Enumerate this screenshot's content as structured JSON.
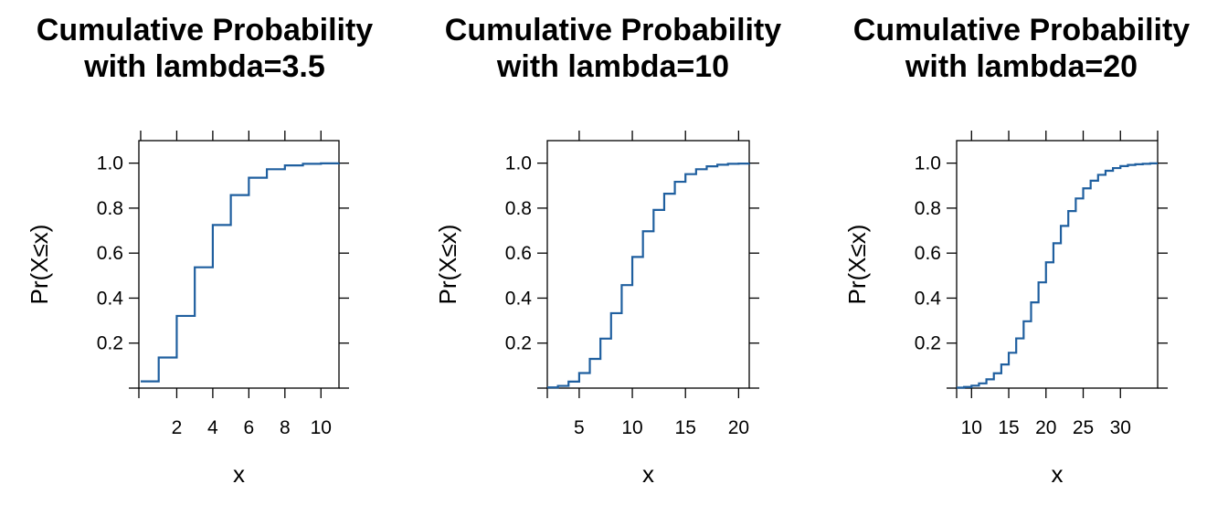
{
  "chart_data": [
    {
      "type": "line",
      "step": true,
      "title": [
        "Cumulative Probability",
        "with lambda=3.5"
      ],
      "xlabel": "x",
      "ylabel": "Pr(X≤x)",
      "xlim": [
        -0.1,
        11
      ],
      "ylim": [
        0,
        1.1
      ],
      "x_ticks": [
        2,
        4,
        6,
        8,
        10
      ],
      "x_ticks_top": [
        0,
        2,
        4,
        6,
        8,
        10
      ],
      "y_ticks": [
        0.2,
        0.4,
        0.6,
        0.8,
        1.0
      ],
      "y_tick_labels": [
        "0.2",
        "0.4",
        "0.6",
        "0.8",
        "1.0"
      ],
      "x": [
        0,
        1,
        2,
        3,
        4,
        5,
        6,
        7,
        8,
        9,
        10,
        11
      ],
      "y": [
        0.03,
        0.136,
        0.321,
        0.537,
        0.725,
        0.858,
        0.935,
        0.973,
        0.99,
        0.997,
        0.999,
        1.0
      ],
      "color": "#1f5f9f"
    },
    {
      "type": "line",
      "step": true,
      "title": [
        "Cumulative Probability",
        "with lambda=10"
      ],
      "xlabel": "x",
      "ylabel": "Pr(X≤x)",
      "xlim": [
        2,
        21
      ],
      "ylim": [
        0,
        1.1
      ],
      "x_ticks": [
        5,
        10,
        15,
        20
      ],
      "x_ticks_top": [
        5,
        10,
        15,
        20
      ],
      "y_ticks": [
        0.2,
        0.4,
        0.6,
        0.8,
        1.0
      ],
      "y_tick_labels": [
        "0.2",
        "0.4",
        "0.6",
        "0.8",
        "1.0"
      ],
      "x": [
        2,
        3,
        4,
        5,
        6,
        7,
        8,
        9,
        10,
        11,
        12,
        13,
        14,
        15,
        16,
        17,
        18,
        19,
        20,
        21
      ],
      "y": [
        0.003,
        0.01,
        0.029,
        0.067,
        0.13,
        0.22,
        0.333,
        0.458,
        0.583,
        0.697,
        0.792,
        0.864,
        0.917,
        0.951,
        0.973,
        0.986,
        0.993,
        0.997,
        0.998,
        0.999
      ],
      "color": "#1f5f9f"
    },
    {
      "type": "line",
      "step": true,
      "title": [
        "Cumulative Probability",
        "with lambda=20"
      ],
      "xlabel": "x",
      "ylabel": "Pr(X≤x)",
      "xlim": [
        8,
        35
      ],
      "ylim": [
        0,
        1.1
      ],
      "x_ticks": [
        10,
        15,
        20,
        25,
        30
      ],
      "x_ticks_top": [
        10,
        15,
        20,
        25,
        30,
        35
      ],
      "y_ticks": [
        0.2,
        0.4,
        0.6,
        0.8,
        1.0
      ],
      "y_tick_labels": [
        "0.2",
        "0.4",
        "0.6",
        "0.8",
        "1.0"
      ],
      "x": [
        8,
        9,
        10,
        11,
        12,
        13,
        14,
        15,
        16,
        17,
        18,
        19,
        20,
        21,
        22,
        23,
        24,
        25,
        26,
        27,
        28,
        29,
        30,
        31,
        32,
        33,
        34,
        35
      ],
      "y": [
        0.002,
        0.005,
        0.011,
        0.021,
        0.039,
        0.066,
        0.105,
        0.157,
        0.221,
        0.297,
        0.381,
        0.47,
        0.559,
        0.644,
        0.721,
        0.787,
        0.843,
        0.888,
        0.922,
        0.948,
        0.966,
        0.978,
        0.987,
        0.992,
        0.995,
        0.997,
        0.999,
        0.999
      ],
      "color": "#1f5f9f"
    }
  ]
}
